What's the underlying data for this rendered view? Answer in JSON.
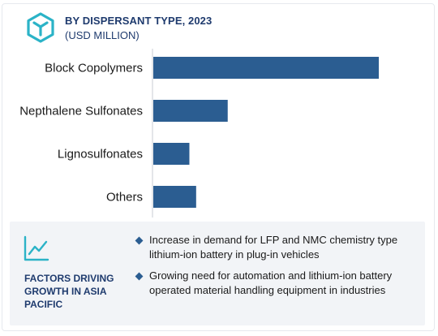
{
  "header": {
    "title": "BY DISPERSANT TYPE, 2023",
    "subtitle": "(USD MILLION)",
    "logo_icon": "hexagon-y-logo-icon"
  },
  "chart_data": {
    "type": "bar",
    "orientation": "horizontal",
    "title": "BY DISPERSANT TYPE, 2023",
    "subtitle": "(USD MILLION)",
    "categories": [
      "Block Copolymers",
      "Nepthalene Sulfonates",
      "Lignosulfonates",
      "Others"
    ],
    "values": [
      100,
      33,
      16,
      19
    ],
    "xlim": [
      0,
      100
    ],
    "grid": false,
    "axis_visible": false,
    "bar_color": "#2b5d91"
  },
  "footer": {
    "icon": "trend-line-icon",
    "heading": "FACTORS DRIVING GROWTH IN ASIA PACIFIC",
    "bullets": [
      "Increase in demand for LFP and NMC chemistry type lithium-ion battery in plug-in vehicles",
      "Growing need for automation and lithium-ion battery operated material handling equipment in industries"
    ]
  },
  "colors": {
    "accent": "#2b5d91",
    "heading": "#1f3b6e",
    "logo": "#2bb3c7",
    "footer_bg": "#f2f4f7"
  }
}
